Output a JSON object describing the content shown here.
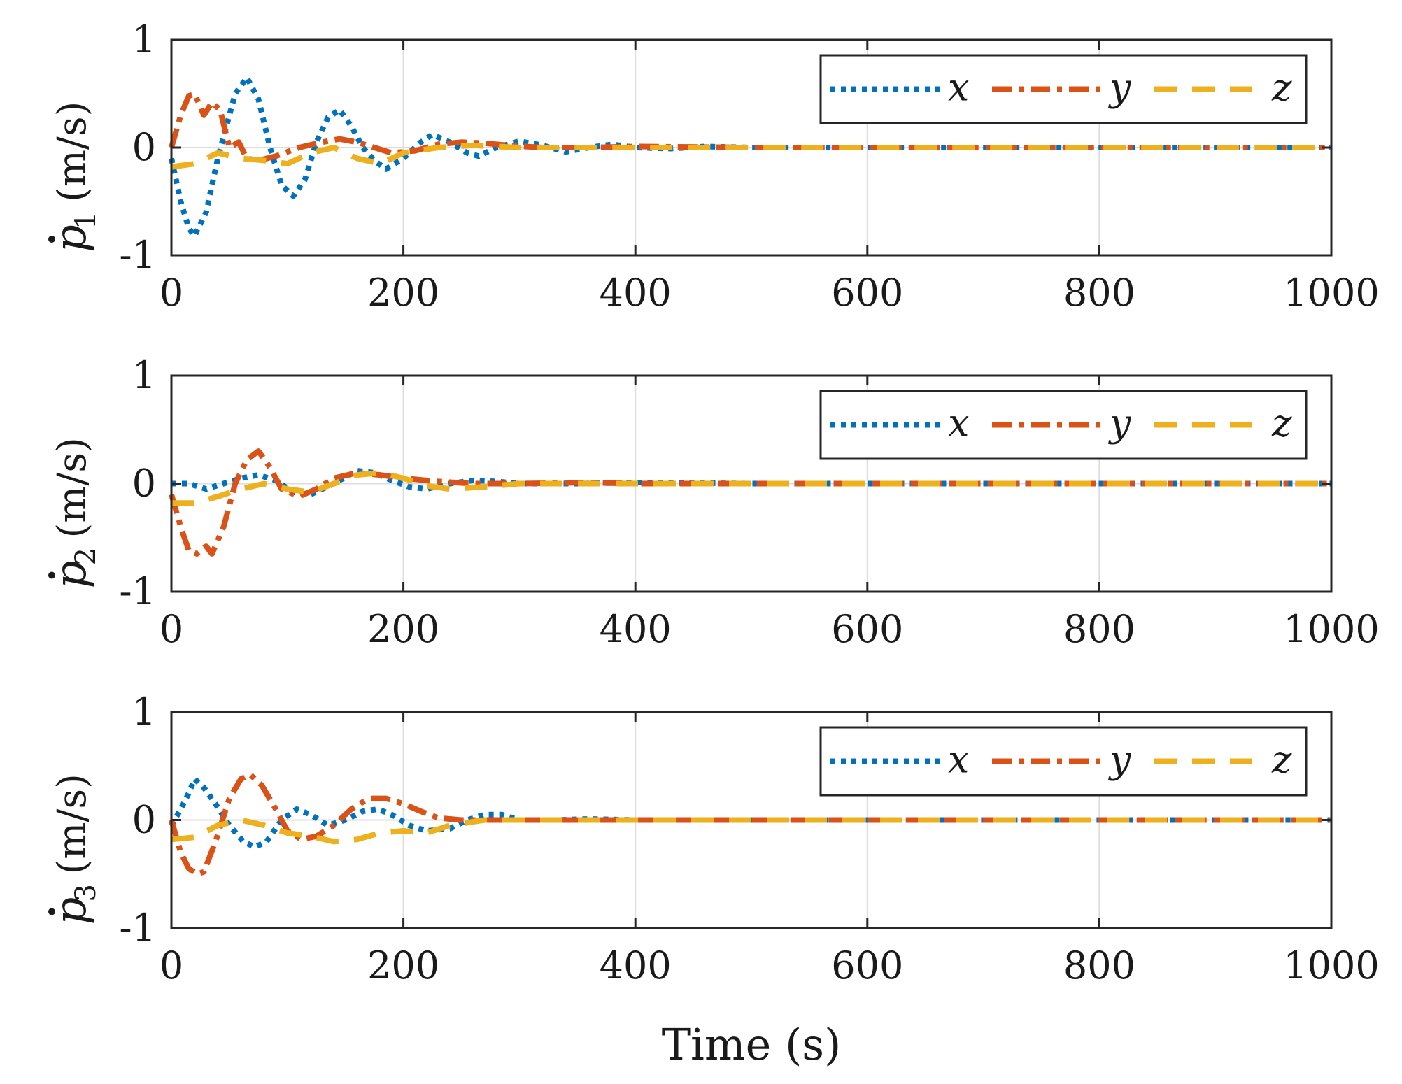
{
  "chart_data": [
    {
      "type": "line",
      "title": "",
      "ylabel": {
        "symbol": "p",
        "subscript": "1",
        "units": "(m/s)"
      },
      "xlabel": "",
      "xlim": [
        0,
        1000
      ],
      "ylim": [
        -1,
        1
      ],
      "xticks": [
        "0",
        "200",
        "400",
        "600",
        "800",
        "1000"
      ],
      "yticks": [
        "1",
        "0",
        "-1"
      ],
      "grid": "x-only",
      "legend": {
        "position": "top-right",
        "entries": [
          "x",
          "y",
          "z"
        ]
      },
      "series": [
        {
          "name": "x",
          "style": "dotted",
          "color": "#0072BD",
          "x": [
            0,
            8,
            15,
            20,
            30,
            40,
            55,
            65,
            75,
            85,
            95,
            105,
            115,
            125,
            135,
            145,
            155,
            165,
            175,
            185,
            200,
            215,
            225,
            240,
            255,
            265,
            280,
            300,
            320,
            340,
            360,
            380,
            400,
            430,
            460,
            500,
            600,
            800,
            1000
          ],
          "y": [
            -0.1,
            -0.5,
            -0.75,
            -0.82,
            -0.6,
            -0.1,
            0.5,
            0.65,
            0.45,
            0.0,
            -0.35,
            -0.45,
            -0.3,
            0.05,
            0.28,
            0.35,
            0.2,
            0.0,
            -0.12,
            -0.2,
            -0.1,
            0.05,
            0.12,
            0.05,
            -0.05,
            -0.08,
            0.0,
            0.06,
            0.02,
            -0.04,
            0.0,
            0.03,
            0.0,
            -0.01,
            0.01,
            0.0,
            0.0,
            0.0,
            0.0
          ]
        },
        {
          "name": "y",
          "style": "dashdot",
          "color": "#D95319",
          "x": [
            0,
            8,
            15,
            20,
            28,
            35,
            42,
            50,
            58,
            65,
            75,
            90,
            110,
            130,
            145,
            160,
            175,
            190,
            210,
            230,
            250,
            270,
            290,
            320,
            360,
            400,
            500,
            600,
            800,
            1000
          ],
          "y": [
            0.0,
            0.3,
            0.48,
            0.5,
            0.3,
            0.42,
            0.35,
            0.0,
            0.05,
            -0.1,
            -0.12,
            -0.08,
            0.0,
            0.05,
            0.08,
            0.05,
            0.0,
            -0.05,
            -0.03,
            0.03,
            0.05,
            0.04,
            0.02,
            0.0,
            0.0,
            0.01,
            0.0,
            0.0,
            0.0,
            0.0
          ]
        },
        {
          "name": "z",
          "style": "dashed",
          "color": "#EDB120",
          "x": [
            0,
            20,
            40,
            60,
            80,
            100,
            120,
            140,
            160,
            180,
            200,
            230,
            260,
            300,
            350,
            400,
            500,
            600,
            800,
            1000
          ],
          "y": [
            -0.18,
            -0.15,
            -0.05,
            -0.1,
            -0.12,
            -0.15,
            -0.05,
            0.0,
            -0.1,
            -0.15,
            -0.05,
            0.0,
            0.02,
            0.0,
            0.0,
            0.0,
            0.0,
            0.0,
            0.0,
            0.0
          ]
        }
      ]
    },
    {
      "type": "line",
      "title": "",
      "ylabel": {
        "symbol": "p",
        "subscript": "2",
        "units": "(m/s)"
      },
      "xlabel": "",
      "xlim": [
        0,
        1000
      ],
      "ylim": [
        -1,
        1
      ],
      "xticks": [
        "0",
        "200",
        "400",
        "600",
        "800",
        "1000"
      ],
      "yticks": [
        "1",
        "0",
        "-1"
      ],
      "grid": "x-only",
      "legend": {
        "position": "top-right",
        "entries": [
          "x",
          "y",
          "z"
        ]
      },
      "series": [
        {
          "name": "x",
          "style": "dotted",
          "color": "#0072BD",
          "x": [
            0,
            15,
            30,
            45,
            60,
            75,
            90,
            105,
            120,
            140,
            160,
            175,
            190,
            205,
            220,
            240,
            260,
            280,
            300,
            350,
            400,
            500,
            600,
            800,
            1000
          ],
          "y": [
            0.0,
            0.0,
            -0.05,
            0.0,
            0.05,
            0.08,
            0.03,
            -0.08,
            -0.1,
            0.0,
            0.12,
            0.1,
            0.03,
            -0.03,
            -0.05,
            0.0,
            0.03,
            0.02,
            0.0,
            0.0,
            0.01,
            0.0,
            0.0,
            0.0,
            0.0
          ]
        },
        {
          "name": "y",
          "style": "dashdot",
          "color": "#D95319",
          "x": [
            0,
            8,
            15,
            22,
            30,
            35,
            45,
            55,
            65,
            75,
            85,
            95,
            110,
            125,
            140,
            160,
            180,
            200,
            230,
            260,
            300,
            360,
            400,
            500,
            600,
            800,
            1000
          ],
          "y": [
            -0.1,
            -0.4,
            -0.62,
            -0.65,
            -0.58,
            -0.65,
            -0.4,
            0.0,
            0.22,
            0.3,
            0.15,
            -0.05,
            -0.12,
            -0.05,
            0.05,
            0.1,
            0.08,
            0.05,
            0.02,
            0.0,
            0.0,
            0.01,
            0.0,
            0.0,
            0.0,
            0.0,
            0.0
          ]
        },
        {
          "name": "z",
          "style": "dashed",
          "color": "#EDB120",
          "x": [
            0,
            20,
            40,
            60,
            80,
            100,
            120,
            140,
            160,
            180,
            200,
            220,
            240,
            270,
            300,
            350,
            400,
            500,
            600,
            800,
            1000
          ],
          "y": [
            -0.18,
            -0.18,
            -0.12,
            -0.05,
            0.0,
            -0.05,
            -0.08,
            0.0,
            0.08,
            0.1,
            0.05,
            -0.02,
            -0.05,
            -0.03,
            0.0,
            0.0,
            0.0,
            0.0,
            0.0,
            0.0,
            0.0
          ]
        }
      ]
    },
    {
      "type": "line",
      "title": "",
      "ylabel": {
        "symbol": "p",
        "subscript": "3",
        "units": "(m/s)"
      },
      "xlabel": "Time (s)",
      "xlim": [
        0,
        1000
      ],
      "ylim": [
        -1,
        1
      ],
      "xticks": [
        "0",
        "200",
        "400",
        "600",
        "800",
        "1000"
      ],
      "yticks": [
        "1",
        "0",
        "-1"
      ],
      "grid": "x-only",
      "legend": {
        "position": "top-right",
        "entries": [
          "x",
          "y",
          "z"
        ]
      },
      "series": [
        {
          "name": "x",
          "style": "dotted",
          "color": "#0072BD",
          "x": [
            0,
            8,
            15,
            20,
            28,
            38,
            50,
            62,
            72,
            82,
            95,
            108,
            120,
            135,
            150,
            165,
            178,
            190,
            205,
            220,
            240,
            255,
            270,
            285,
            300,
            330,
            360,
            400,
            500,
            600,
            800,
            1000
          ],
          "y": [
            -0.05,
            0.1,
            0.25,
            0.38,
            0.3,
            0.15,
            -0.05,
            -0.2,
            -0.25,
            -0.2,
            0.0,
            0.1,
            0.05,
            -0.05,
            0.0,
            0.08,
            0.1,
            0.05,
            -0.05,
            -0.1,
            -0.08,
            0.0,
            0.05,
            0.05,
            0.0,
            0.0,
            0.01,
            0.0,
            0.0,
            0.0,
            0.0,
            0.0
          ]
        },
        {
          "name": "y",
          "style": "dashdot",
          "color": "#D95319",
          "x": [
            0,
            8,
            15,
            22,
            28,
            38,
            50,
            60,
            68,
            78,
            90,
            100,
            112,
            125,
            140,
            155,
            170,
            185,
            200,
            215,
            230,
            250,
            270,
            300,
            350,
            400,
            500,
            600,
            800,
            1000
          ],
          "y": [
            0.0,
            -0.3,
            -0.45,
            -0.5,
            -0.48,
            -0.2,
            0.2,
            0.38,
            0.42,
            0.32,
            0.1,
            -0.1,
            -0.18,
            -0.15,
            -0.05,
            0.1,
            0.2,
            0.2,
            0.15,
            0.08,
            0.02,
            0.0,
            0.0,
            0.0,
            0.0,
            0.0,
            0.0,
            0.0,
            0.0,
            0.0
          ]
        },
        {
          "name": "z",
          "style": "dashed",
          "color": "#EDB120",
          "x": [
            0,
            20,
            40,
            60,
            80,
            100,
            120,
            140,
            160,
            180,
            200,
            220,
            240,
            270,
            300,
            350,
            400,
            500,
            600,
            800,
            1000
          ],
          "y": [
            -0.18,
            -0.16,
            -0.05,
            0.0,
            -0.05,
            -0.12,
            -0.15,
            -0.2,
            -0.18,
            -0.12,
            -0.1,
            -0.12,
            -0.05,
            0.0,
            0.0,
            0.0,
            0.0,
            0.0,
            0.0,
            0.0,
            0.0
          ]
        }
      ]
    }
  ]
}
